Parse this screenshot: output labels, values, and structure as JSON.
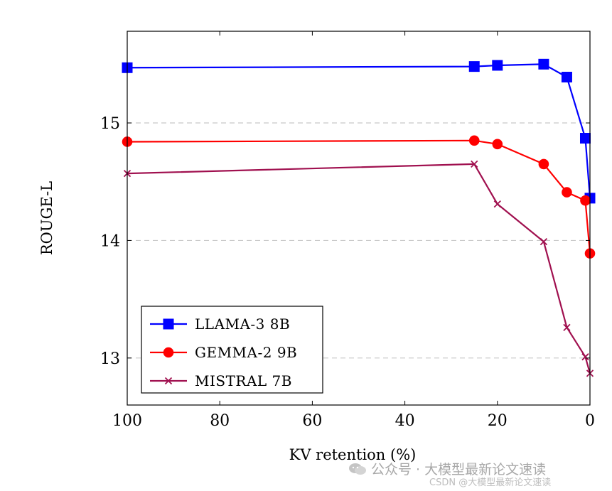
{
  "chart_data": {
    "type": "line",
    "title": "",
    "xlabel": "KV retention (%)",
    "ylabel": "ROUGE-L",
    "xlim": [
      100,
      0
    ],
    "ylim": [
      12.6,
      15.78
    ],
    "x_ticks": [
      100,
      80,
      60,
      40,
      20,
      0
    ],
    "y_ticks": [
      13,
      14,
      15
    ],
    "grid": "horizontal-dashed",
    "legend_position": "bottom-left",
    "series": [
      {
        "name": "LLAMA-3 8B",
        "color": "#0000ff",
        "marker": "square",
        "x": [
          100,
          25,
          20,
          10,
          5,
          1,
          0
        ],
        "y": [
          15.47,
          15.48,
          15.49,
          15.5,
          15.39,
          14.87,
          14.36
        ]
      },
      {
        "name": "GEMMA-2 9B",
        "color": "#ff0000",
        "marker": "circle",
        "x": [
          100,
          25,
          20,
          10,
          5,
          1,
          0
        ],
        "y": [
          14.84,
          14.85,
          14.82,
          14.65,
          14.41,
          14.34,
          13.89
        ]
      },
      {
        "name": "MISTRAL 7B",
        "color": "#a0104f",
        "marker": "x",
        "x": [
          100,
          25,
          20,
          10,
          5,
          1,
          0
        ],
        "y": [
          14.57,
          14.65,
          14.31,
          13.99,
          13.26,
          13.01,
          12.87
        ]
      }
    ]
  },
  "watermark": {
    "line1": "公众号 · 大模型最新论文速读",
    "line2": "CSDN @大模型最新论文速读",
    "icon": "wechat-icon"
  }
}
